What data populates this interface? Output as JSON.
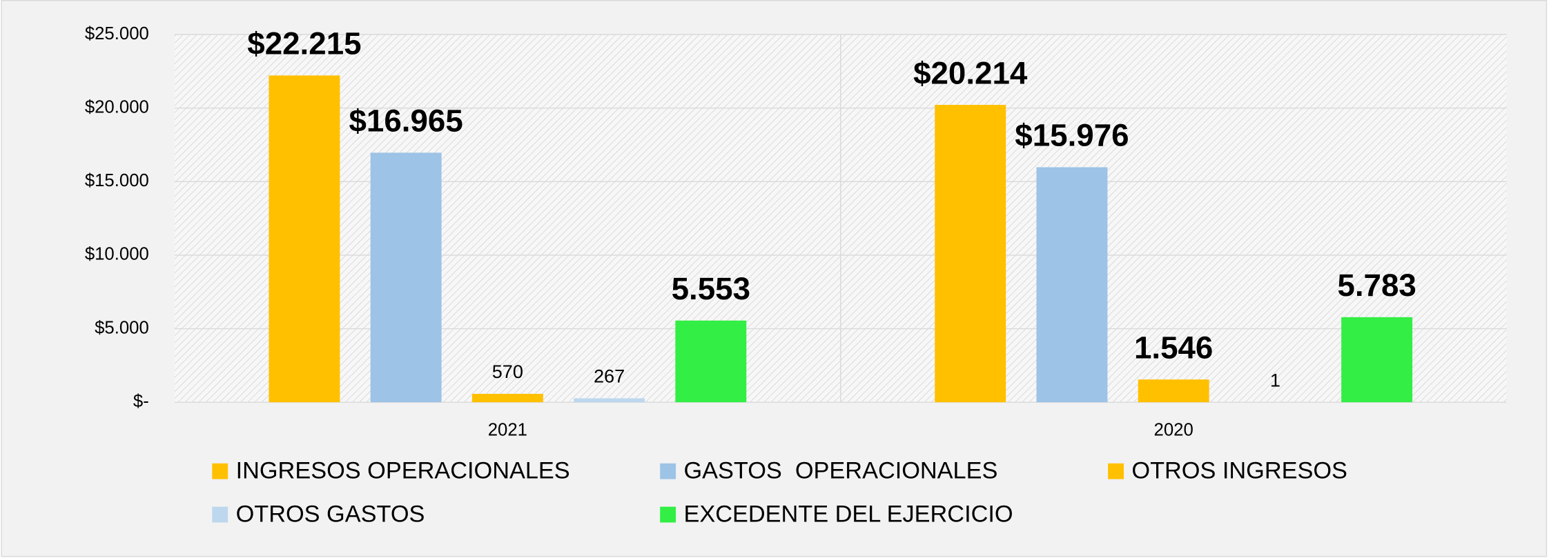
{
  "chart_data": {
    "type": "bar",
    "categories": [
      "2021",
      "2020"
    ],
    "series": [
      {
        "name": "INGRESOS OPERACIONALES",
        "color": "#ffc000",
        "values": [
          22215,
          20214
        ],
        "value_labels": [
          "$22.215",
          "$20.214"
        ]
      },
      {
        "name": "GASTOS  OPERACIONALES",
        "color": "#9dc3e6",
        "values": [
          16965,
          15976
        ],
        "value_labels": [
          "$16.965",
          "$15.976"
        ]
      },
      {
        "name": "OTROS INGRESOS",
        "color": "#ffc000",
        "values": [
          570,
          1546
        ],
        "value_labels": [
          "570",
          "1.546"
        ]
      },
      {
        "name": "OTROS GASTOS",
        "color": "#bdd7ee",
        "values": [
          267,
          1
        ]
      },
      {
        "name": "EXCEDENTE DEL EJERCICIO",
        "color": "#33ee44",
        "values": [
          5553,
          5783
        ],
        "value_labels": [
          "5.553",
          "5.783"
        ]
      }
    ],
    "ylim": [
      0,
      25000
    ],
    "yticks": [
      {
        "value": 0,
        "label": "$-"
      },
      {
        "value": 5000,
        "label": "$5.000"
      },
      {
        "value": 10000,
        "label": "$10.000"
      },
      {
        "value": 15000,
        "label": "$15.000"
      },
      {
        "value": 20000,
        "label": "$20.000"
      },
      {
        "value": 25000,
        "label": "$25.000"
      }
    ],
    "grid": true,
    "legend": "bottom"
  }
}
